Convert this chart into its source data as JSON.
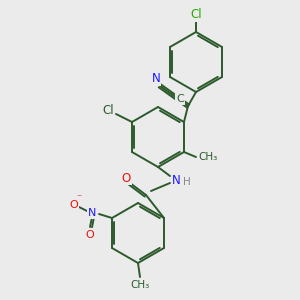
{
  "background_color": "#ebebeb",
  "bond_color": "#2d5a2d",
  "atom_colors": {
    "N": "#1a1aff",
    "O": "#ee1111",
    "Cl_green": "#22aa00",
    "Cl_mid": "#2d5a2d",
    "C": "#2d5a2d",
    "H": "#888888"
  },
  "figsize": [
    3.0,
    3.0
  ],
  "dpi": 100
}
